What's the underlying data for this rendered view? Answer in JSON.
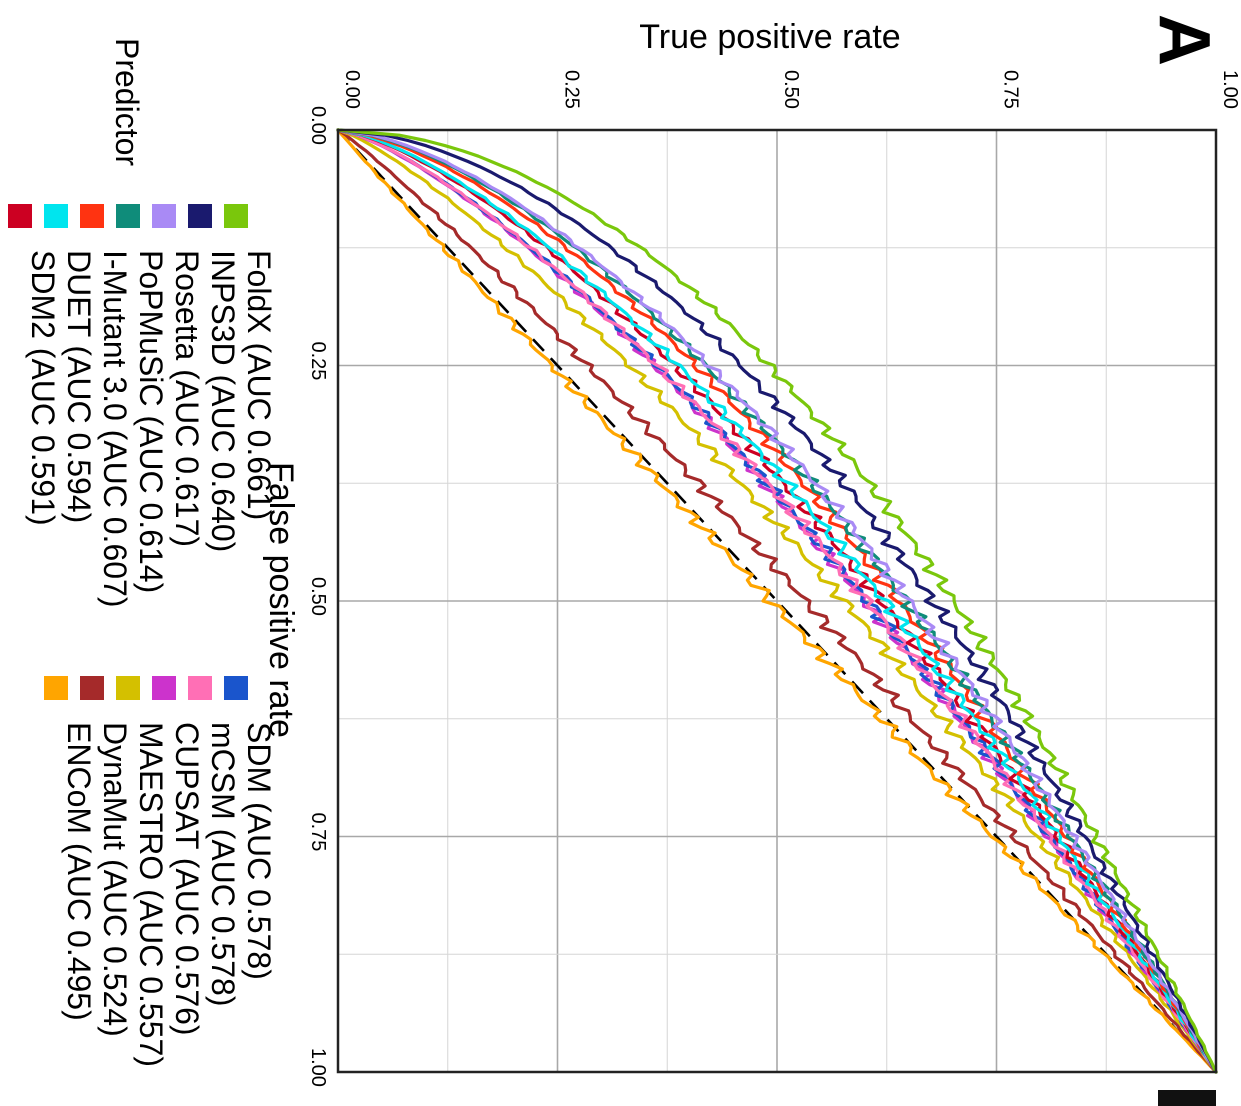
{
  "panel_label": "A",
  "chart_data": {
    "type": "line",
    "orientation": "rotated 90° clockwise",
    "xlabel": "False positive rate",
    "ylabel": "True positive rate",
    "xlim": [
      0,
      1
    ],
    "ylim": [
      0,
      1
    ],
    "x_ticks": [
      "0.00",
      "0.25",
      "0.50",
      "0.75",
      "1.00"
    ],
    "y_ticks": [
      "0.00",
      "0.25",
      "0.50",
      "0.75",
      "1.00"
    ],
    "grid": true,
    "reference_line": "diagonal dashed",
    "legend_title": "Predictor",
    "legend_placement": "bottom",
    "series": [
      {
        "name": "FoldX (AUC 0.661)",
        "color": "#7ac70c",
        "auc": 0.661
      },
      {
        "name": "INPS3D (AUC 0.640)",
        "color": "#1a1a6e",
        "auc": 0.64
      },
      {
        "name": "Rosetta (AUC 0.617)",
        "color": "#a98af5",
        "auc": 0.617
      },
      {
        "name": "PoPMuSiC (AUC 0.614)",
        "color": "#0f8c7a",
        "auc": 0.614
      },
      {
        "name": "I-Mutant 3.0 (AUC 0.607)",
        "color": "#ff3311",
        "auc": 0.607
      },
      {
        "name": "DUET (AUC 0.594)",
        "color": "#00e5ee",
        "auc": 0.594
      },
      {
        "name": "SDM2 (AUC 0.591)",
        "color": "#cc0022",
        "auc": 0.591
      },
      {
        "name": "SDM (AUC 0.578)",
        "color": "#1a55cc",
        "auc": 0.578
      },
      {
        "name": "mCSM (AUC 0.578)",
        "color": "#ff6fb5",
        "auc": 0.578
      },
      {
        "name": "CUPSAT (AUC 0.576)",
        "color": "#cc33cc",
        "auc": 0.576
      },
      {
        "name": "MAESTRO (AUC 0.557)",
        "color": "#d4c000",
        "auc": 0.557
      },
      {
        "name": "DynaMut (AUC 0.524)",
        "color": "#a52a2a",
        "auc": 0.524
      },
      {
        "name": "ENCoM (AUC 0.495)",
        "color": "#ffa500",
        "auc": 0.495
      }
    ]
  }
}
